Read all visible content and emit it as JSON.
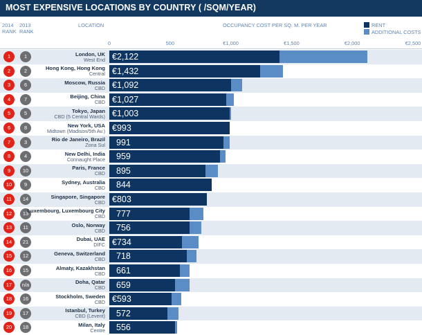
{
  "title": "MOST EXPENSIVE LOCATIONS BY COUNTRY ( /SQM/YEAR)",
  "headers": {
    "rank2014_year": "2014",
    "rank2014_label": "RANK",
    "rank2013_year": "2013",
    "rank2013_label": "RANK",
    "location": "LOCATION",
    "occupancy": "OCCUPANCY COST PER SQ. M. PER YEAR"
  },
  "legend": {
    "rent": "RENT",
    "additional": "ADDITIONAL COSTS"
  },
  "colors": {
    "rent": "#0e3462",
    "additional": "#5a8dc6",
    "rank2014": "#e2231a",
    "rank2013": "#6d6e71",
    "header": "#133960"
  },
  "chart_data": {
    "type": "bar",
    "orientation": "horizontal",
    "stacked": true,
    "title": "MOST EXPENSIVE LOCATIONS BY COUNTRY ( /SQM/YEAR)",
    "xlabel": "OCCUPANCY COST PER SQ. M. PER YEAR",
    "xlim": [
      0,
      2500
    ],
    "ticks": [
      "0",
      "500",
      "€1,000",
      "€1,500",
      "€2,000",
      "€2,500"
    ],
    "series": [
      {
        "name": "RENT",
        "values": [
          1400,
          1240,
          1000,
          960,
          990,
          993,
          940,
          910,
          790,
          844,
          803,
          660,
          660,
          600,
          640,
          580,
          540,
          510,
          480,
          540
        ]
      },
      {
        "name": "ADDITIONAL COSTS",
        "values": [
          722,
          192,
          92,
          67,
          13,
          0,
          51,
          49,
          105,
          0,
          0,
          117,
          96,
          134,
          78,
          81,
          119,
          83,
          92,
          16
        ]
      }
    ],
    "rows": [
      {
        "rank2014": "1",
        "rank2013": "1",
        "city": "London, UK",
        "sub": "West End",
        "label": "€2,122"
      },
      {
        "rank2014": "2",
        "rank2013": "2",
        "city": "Hong Kong, Hong Kong",
        "sub": "Central",
        "label": "€1,432"
      },
      {
        "rank2014": "3",
        "rank2013": "6",
        "city": "Moscow, Russia",
        "sub": "CBD",
        "label": "€1,092"
      },
      {
        "rank2014": "4",
        "rank2013": "7",
        "city": "Beijing, China",
        "sub": "CBD",
        "label": "€1,027"
      },
      {
        "rank2014": "5",
        "rank2013": "5",
        "city": "Tokyo, Japan",
        "sub": "CBD (5 Central Wards)",
        "label": "€1,003"
      },
      {
        "rank2014": "6",
        "rank2013": "8",
        "city": "New York, USA",
        "sub": "Midtown (Madison/5th Av.)",
        "label": "€993"
      },
      {
        "rank2014": "7",
        "rank2013": "3",
        "city": "Rio de Janeiro, Brazil",
        "sub": "Zona Sul",
        "label": "991"
      },
      {
        "rank2014": "8",
        "rank2013": "4",
        "city": "New Delhi, India",
        "sub": "Connaught Place",
        "label": "959"
      },
      {
        "rank2014": "9",
        "rank2013": "10",
        "city": "Paris, France",
        "sub": "CBD",
        "label": "895"
      },
      {
        "rank2014": "10",
        "rank2013": "9",
        "city": "Sydney, Australia",
        "sub": "CBD",
        "label": "844"
      },
      {
        "rank2014": "11",
        "rank2013": "14",
        "city": "Singapore, Singapore",
        "sub": "CBD",
        "label": "€803"
      },
      {
        "rank2014": "12",
        "rank2013": "13",
        "city": "Luxembourg, Luxembourg City",
        "sub": "CBD",
        "label": "777"
      },
      {
        "rank2014": "13",
        "rank2013": "11",
        "city": "Oslo, Norway",
        "sub": "CBD",
        "label": "756"
      },
      {
        "rank2014": "14",
        "rank2013": "21",
        "city": "Dubai, UAE",
        "sub": "DIFC",
        "label": "€734"
      },
      {
        "rank2014": "15",
        "rank2013": "12",
        "city": "Geneva, Switzerland",
        "sub": "CBD",
        "label": "718"
      },
      {
        "rank2014": "16",
        "rank2013": "15",
        "city": "Almaty, Kazakhstan",
        "sub": "CBD",
        "label": "661"
      },
      {
        "rank2014": "17",
        "rank2013": "n/a",
        "city": "Doha, Qatar",
        "sub": "CBD",
        "label": "659"
      },
      {
        "rank2014": "18",
        "rank2013": "16",
        "city": "Stockholm, Sweden",
        "sub": "CBD",
        "label": "€593"
      },
      {
        "rank2014": "19",
        "rank2013": "17",
        "city": "Istanbul, Turkey",
        "sub": "CBD (Levent)",
        "label": "572"
      },
      {
        "rank2014": "20",
        "rank2013": "18",
        "city": "Milan, Italy",
        "sub": "Centre",
        "label": "556"
      }
    ]
  }
}
